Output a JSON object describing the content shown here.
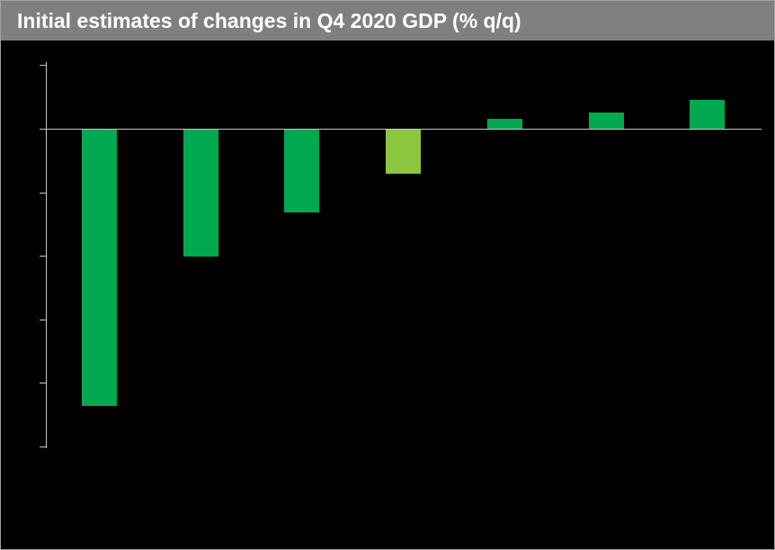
{
  "header": {
    "title": "Initial estimates of changes in Q4 2020 GDP (% q/q)",
    "bg_color": "#7f7f7f",
    "text_color": "#ffffff"
  },
  "chart_data": {
    "type": "bar",
    "title": "Initial estimates of changes in Q4 2020 GDP (% q/q)",
    "categories": [
      "",
      "",
      "",
      "",
      "",
      "",
      ""
    ],
    "values": [
      -8.7,
      -4.0,
      -2.6,
      -1.4,
      0.3,
      0.5,
      0.9
    ],
    "bar_colors": [
      "#00a94f",
      "#00a94f",
      "#00a94f",
      "#8cc63e",
      "#00a94f",
      "#00a94f",
      "#00a94f"
    ],
    "highlight_index": 3,
    "highlight_color": "#8cc63e",
    "default_bar_color": "#00a94f",
    "xlabel": "",
    "ylabel": "",
    "ylim": [
      -10,
      2
    ],
    "yticks": [
      2,
      0,
      -2,
      -4,
      -6,
      -8,
      -10
    ],
    "ytick_labels_visible": false,
    "category_labels_visible": false,
    "grid": false,
    "legend": false,
    "background_color": "#000000",
    "axis_color": "#c8c8c8"
  }
}
